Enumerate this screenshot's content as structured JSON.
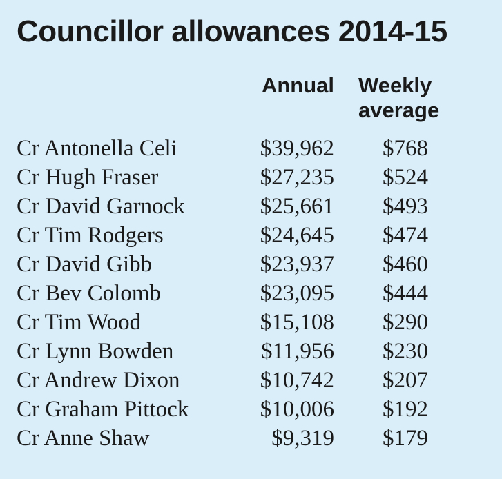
{
  "title": "Councillor allowances 2014-15",
  "columns": {
    "annual": "Annual",
    "weekly": "Weekly\naverage"
  },
  "rows": [
    {
      "name": "Cr Antonella Celi",
      "annual": "$39,962",
      "weekly": "$768"
    },
    {
      "name": "Cr Hugh Fraser",
      "annual": "$27,235",
      "weekly": "$524"
    },
    {
      "name": "Cr David Garnock",
      "annual": "$25,661",
      "weekly": "$493"
    },
    {
      "name": "Cr Tim Rodgers",
      "annual": "$24,645",
      "weekly": "$474"
    },
    {
      "name": "Cr David Gibb",
      "annual": "$23,937",
      "weekly": "$460"
    },
    {
      "name": "Cr Bev Colomb",
      "annual": "$23,095",
      "weekly": "$444"
    },
    {
      "name": "Cr Tim Wood",
      "annual": "$15,108",
      "weekly": "$290"
    },
    {
      "name": "Cr Lynn Bowden",
      "annual": "$11,956",
      "weekly": "$230"
    },
    {
      "name": "Cr Andrew Dixon",
      "annual": "$10,742",
      "weekly": "$207"
    },
    {
      "name": "Cr Graham Pittock",
      "annual": "$10,006",
      "weekly": "$192"
    },
    {
      "name": "Cr Anne Shaw",
      "annual": "$9,319",
      "weekly": "$179"
    }
  ]
}
